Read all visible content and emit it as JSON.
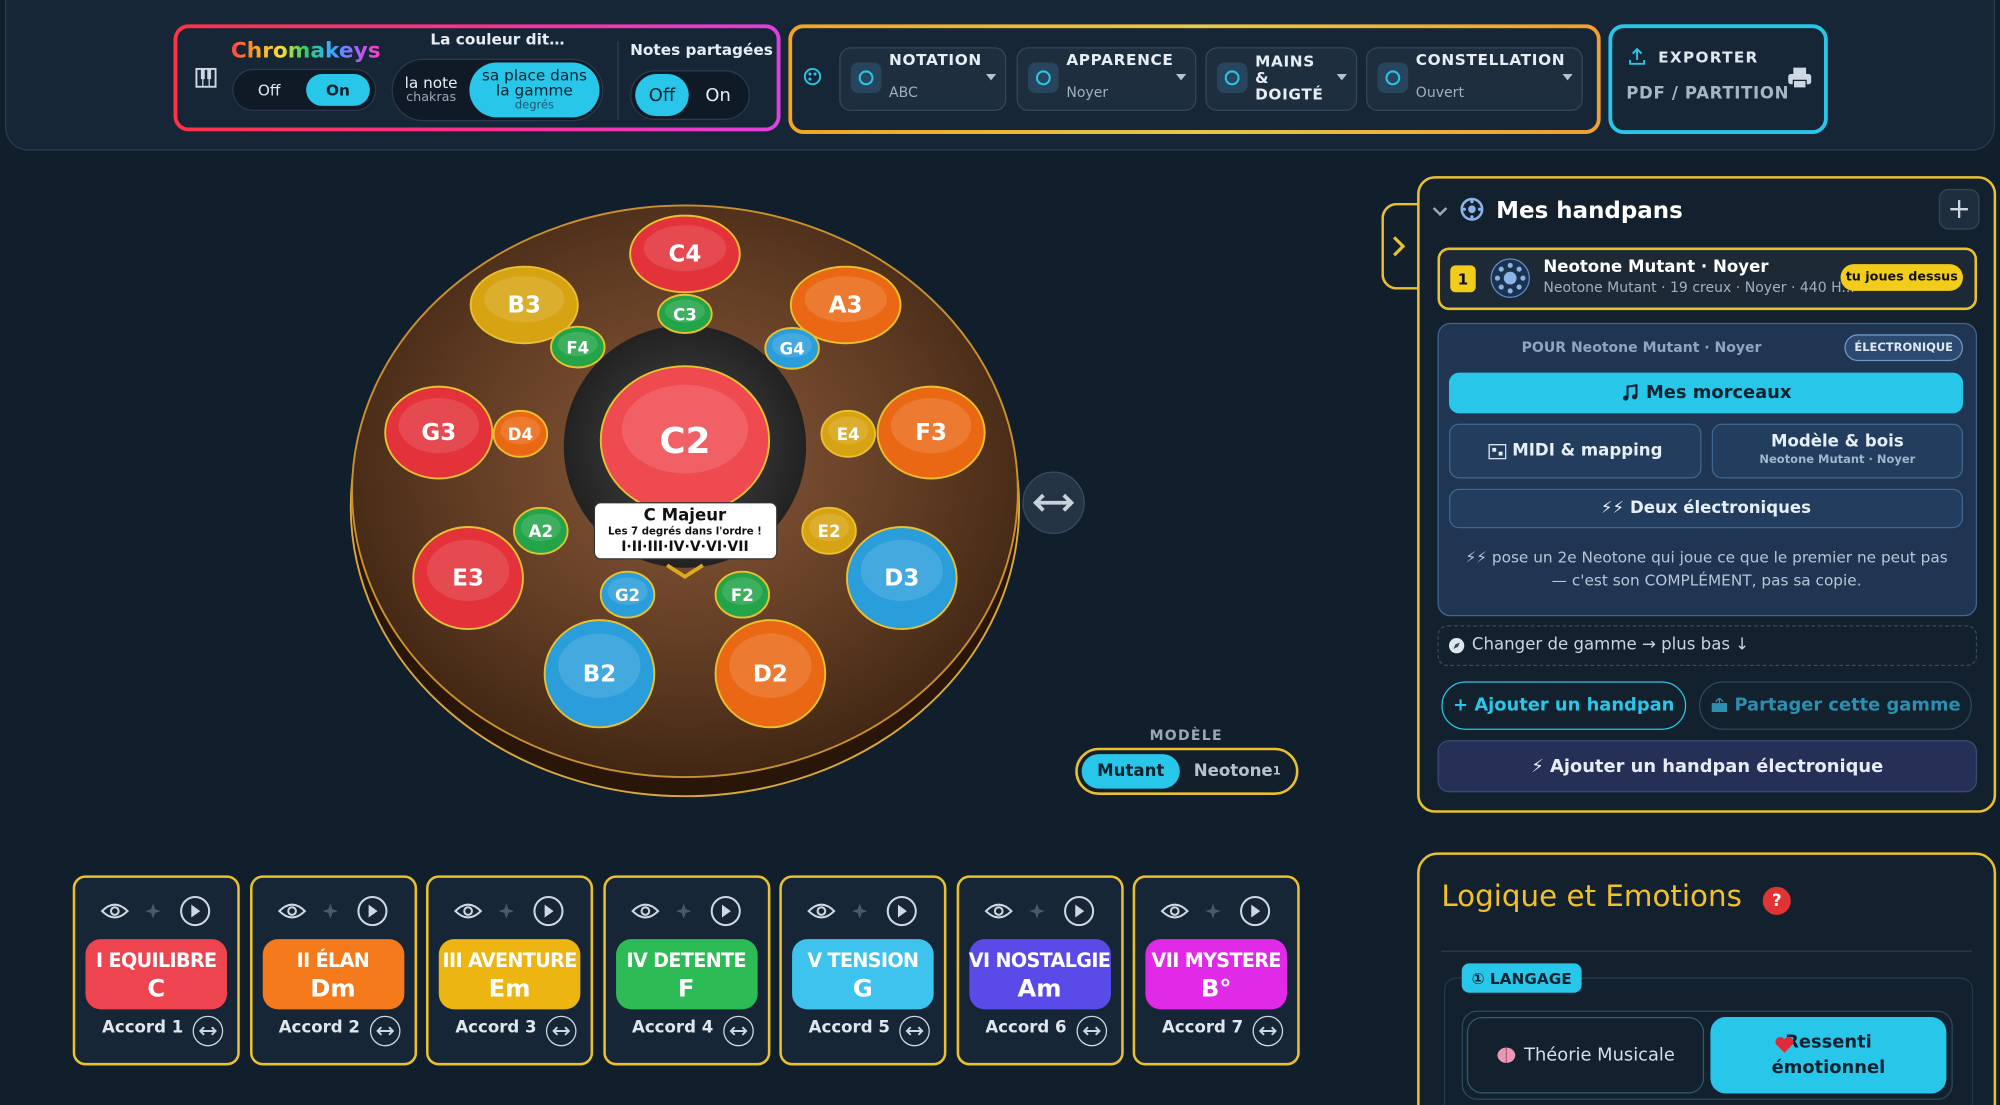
{
  "toolbar": {
    "chromakeys": {
      "title": "Chromakeys",
      "off": "Off",
      "on": "On"
    },
    "color_mode": {
      "title": "La couleur dit…",
      "note": "la note",
      "note_sub": "chakras",
      "degree": "sa place dans la gamme",
      "degree_sub": "degrés"
    },
    "shared_notes": {
      "title": "Notes partagées",
      "off": "Off",
      "on": "On"
    },
    "dropdowns": [
      {
        "label": "NOTATION",
        "value": "ABC"
      },
      {
        "label": "APPARENCE",
        "value": "Noyer"
      },
      {
        "label": "MAINS & DOIGTÉ"
      },
      {
        "label": "CONSTELLATION",
        "value": "Ouvert"
      }
    ],
    "export": {
      "title": "EXPORTER",
      "subtitle": "PDF / PARTITION"
    }
  },
  "handpan": {
    "notes": [
      {
        "label": "C4",
        "color": "#e3323a"
      },
      {
        "label": "C3",
        "color": "#23a448"
      },
      {
        "label": "B3",
        "color": "#d7a312"
      },
      {
        "label": "A3",
        "color": "#ea6814"
      },
      {
        "label": "F4",
        "color": "#23a448"
      },
      {
        "label": "G4",
        "color": "#2a9edb"
      },
      {
        "label": "G3",
        "color": "#e3323a"
      },
      {
        "label": "D4",
        "color": "#ea6814"
      },
      {
        "label": "C2",
        "color": "#ee4a50"
      },
      {
        "label": "E4",
        "color": "#d7a312"
      },
      {
        "label": "F3",
        "color": "#ea6814"
      },
      {
        "label": "A2",
        "color": "#23a448"
      },
      {
        "label": "E2",
        "color": "#d7a312"
      },
      {
        "label": "E3",
        "color": "#e3323a"
      },
      {
        "label": "D3",
        "color": "#2a9edb"
      },
      {
        "label": "G2",
        "color": "#2a9edb"
      },
      {
        "label": "F2",
        "color": "#23a448"
      },
      {
        "label": "B2",
        "color": "#2a9edb"
      },
      {
        "label": "D2",
        "color": "#ea6814"
      }
    ],
    "tooltip": {
      "title": "C Majeur",
      "subtitle": "Les 7 degrés dans l'ordre !",
      "degrees": "I·II·III·IV·V·VI·VII"
    },
    "model": {
      "label": "MODÈLE",
      "options": [
        "Mutant",
        "Neotone"
      ],
      "footnote": "1"
    }
  },
  "chords": [
    {
      "degree": "I EQUILIBRE",
      "chord": "C",
      "label": "Accord 1",
      "color": "#ee4450"
    },
    {
      "degree": "II ÉLAN",
      "chord": "Dm",
      "label": "Accord 2",
      "color": "#f57a1c"
    },
    {
      "degree": "III AVENTURE",
      "chord": "Em",
      "label": "Accord 3",
      "color": "#ecb512"
    },
    {
      "degree": "IV DETENTE",
      "chord": "F",
      "label": "Accord 4",
      "color": "#2dbb55"
    },
    {
      "degree": "V TENSION",
      "chord": "G",
      "label": "Accord 5",
      "color": "#3ec3ef"
    },
    {
      "degree": "VI NOSTALGIE",
      "chord": "Am",
      "label": "Accord 6",
      "color": "#5a4ae8"
    },
    {
      "degree": "VII MYSTERE",
      "chord": "B°",
      "label": "Accord 7",
      "color": "#e02ae8"
    }
  ],
  "sidebar": {
    "title": "Mes handpans",
    "add": "+",
    "handpan": {
      "index": "1",
      "name": "Neotone Mutant · Noyer",
      "details": "Neotone Mutant · 19 creux · Noyer · 440 H...",
      "badge": "tu joues dessus"
    },
    "for": "POUR Neotone Mutant · Noyer",
    "electronic": "ÉLECTRONIQUE",
    "my_pieces": "Mes morceaux",
    "midi": "MIDI & mapping",
    "model_wood": "Modèle & bois",
    "model_wood_sub": "Neotone Mutant · Noyer",
    "two_electronic": "⚡⚡ Deux électroniques",
    "note": "⚡⚡ pose un 2e Neotone qui joue ce que le premier ne peut pas — c'est son COMPLÉMENT, pas sa copie.",
    "change_scale": "Changer de gamme → plus bas ↓",
    "add_handpan": "+ Ajouter un handpan",
    "share_scale": "Partager cette gamme",
    "add_electronic": "⚡ Ajouter un handpan électronique"
  },
  "logic": {
    "title": "Logique et Emotions",
    "help": "?",
    "language": "① LANGAGE",
    "theory": "Théorie Musicale",
    "feeling": "Ressenti émotionnel"
  }
}
